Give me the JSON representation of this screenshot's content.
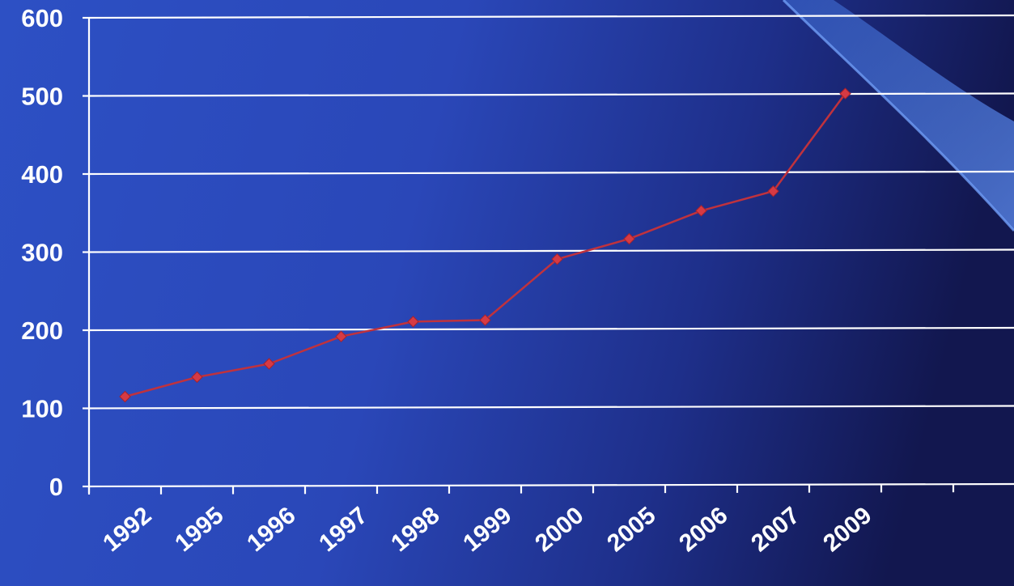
{
  "chart_data": {
    "type": "line",
    "title": "",
    "xlabel": "",
    "ylabel": "",
    "categories": [
      "1992",
      "1995",
      "1996",
      "1997",
      "1998",
      "1999",
      "2000",
      "2005",
      "2006",
      "2007",
      "2009"
    ],
    "series": [
      {
        "values": [
          115,
          140,
          157,
          192,
          211,
          213,
          291,
          317,
          353,
          378,
          503
        ]
      }
    ],
    "ylim": [
      0,
      600
    ],
    "y_ticks": [
      "0",
      "100",
      "200",
      "300",
      "400",
      "500",
      "600"
    ],
    "grid": true,
    "legend": "none"
  },
  "colors": {
    "background_light": "#2b4cc0",
    "background_dark": "#141a56",
    "gridline": "#ffffff",
    "series_line": "#c0323d",
    "marker": "#d63a44",
    "tick_text": "#ffffff"
  }
}
